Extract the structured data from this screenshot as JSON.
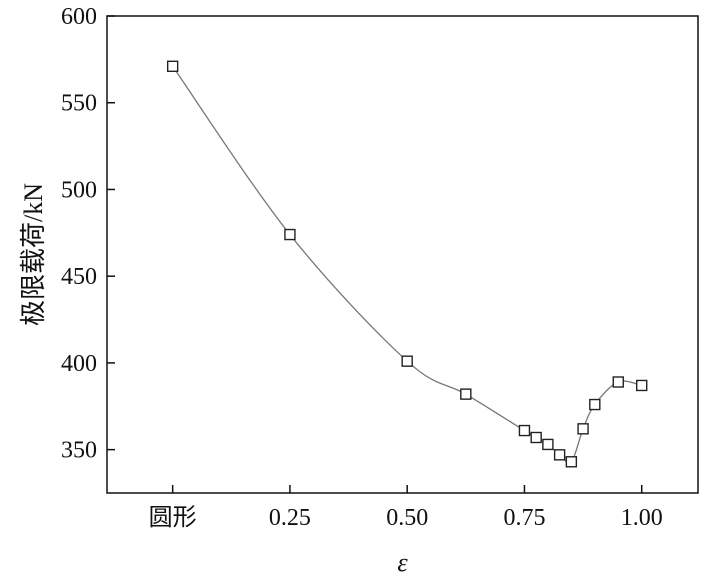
{
  "chart_data": {
    "type": "line",
    "title": "",
    "xlabel": "ε",
    "ylabel": "极限载荷/kN",
    "xlim": [
      -0.14,
      1.12
    ],
    "ylim": [
      325,
      600
    ],
    "x_ticks": [
      {
        "value": 0,
        "label": "圆形"
      },
      {
        "value": 0.25,
        "label": "0.25"
      },
      {
        "value": 0.5,
        "label": "0.50"
      },
      {
        "value": 0.75,
        "label": "0.75"
      },
      {
        "value": 1.0,
        "label": "1.00"
      }
    ],
    "y_ticks": [
      350,
      400,
      450,
      500,
      550,
      600
    ],
    "grid": false,
    "legend": "none",
    "line_color": "#777777",
    "marker": "open-square",
    "series": [
      {
        "x": [
          0,
          0.25,
          0.5,
          0.625,
          0.75,
          0.775,
          0.8,
          0.825,
          0.85,
          0.875,
          0.9,
          0.95,
          1.0
        ],
        "y": [
          571,
          474,
          401,
          382,
          361,
          357,
          353,
          347,
          343,
          362,
          376,
          389,
          387
        ]
      }
    ]
  }
}
